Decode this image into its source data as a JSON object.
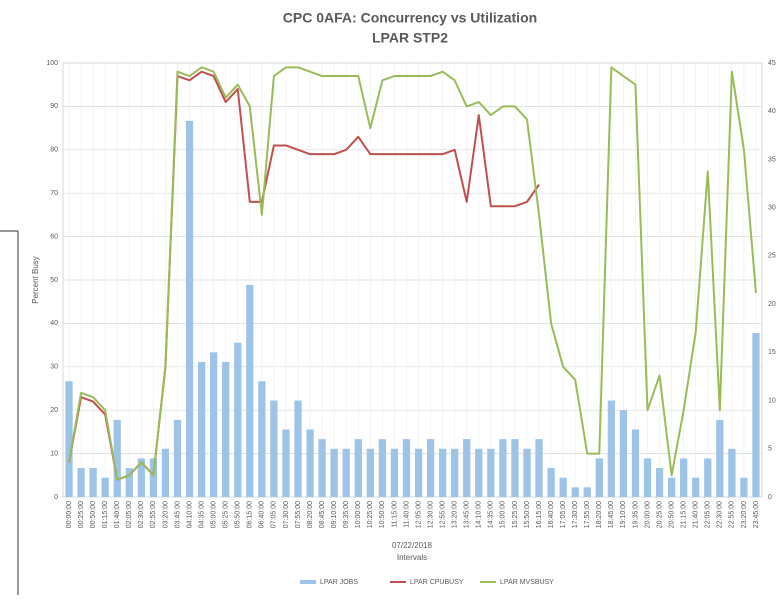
{
  "chart_data": {
    "type": "combo",
    "title": "CPC 0AFA: Concurrency vs Utilization",
    "subtitle": "LPAR STP2",
    "y_label": "Percent Busy",
    "x_label": "Intervals",
    "x_sublabel": "07/22/2018",
    "categories": [
      "00:00:00",
      "00:25:00",
      "00:50:00",
      "01:15:00",
      "01:40:00",
      "02:05:00",
      "02:30:00",
      "02:55:00",
      "03:20:00",
      "03:45:00",
      "04:10:00",
      "04:35:00",
      "05:00:00",
      "05:25:00",
      "05:50:00",
      "06:15:00",
      "06:40:00",
      "07:05:00",
      "07:30:00",
      "07:55:00",
      "08:20:00",
      "08:45:00",
      "09:10:00",
      "09:35:00",
      "10:00:00",
      "10:25:00",
      "10:50:00",
      "11:15:00",
      "11:40:00",
      "12:05:00",
      "12:30:00",
      "12:55:00",
      "13:20:00",
      "13:45:00",
      "14:10:00",
      "14:35:00",
      "15:00:00",
      "15:25:00",
      "15:50:00",
      "16:15:00",
      "16:40:00",
      "17:05:00",
      "17:30:00",
      "17:55:00",
      "18:20:00",
      "18:45:00",
      "19:10:00",
      "19:35:00",
      "20:00:00",
      "20:25:00",
      "20:50:00",
      "21:15:00",
      "21:40:00",
      "22:05:00",
      "22:30:00",
      "22:55:00",
      "23:20:00",
      "23:45:00"
    ],
    "series": [
      {
        "name": "LPAR JOBS",
        "kind": "bar",
        "axis": "y2",
        "color": "#9dc3e6",
        "values": [
          12,
          3,
          3,
          2,
          8,
          3,
          4,
          4,
          5,
          8,
          39,
          14,
          15,
          14,
          16,
          22,
          12,
          10,
          7,
          10,
          7,
          6,
          5,
          5,
          6,
          5,
          6,
          5,
          6,
          5,
          6,
          5,
          5,
          6,
          5,
          5,
          6,
          6,
          5,
          6,
          3,
          2,
          1,
          1,
          4,
          10,
          9,
          7,
          4,
          3,
          2,
          4,
          2,
          4,
          8,
          5,
          2,
          17
        ]
      },
      {
        "name": "LPAR CPUBUSY",
        "kind": "line",
        "color": "#c0504d",
        "values": [
          8,
          23,
          22,
          19,
          4,
          5,
          8,
          5,
          30,
          97,
          96,
          98,
          97,
          91,
          94,
          68,
          68,
          81,
          81,
          80,
          79,
          79,
          79,
          80,
          83,
          79,
          79,
          79,
          79,
          79,
          79,
          79,
          80,
          68,
          88,
          67,
          67,
          67,
          68,
          72,
          null,
          null,
          null,
          null,
          null,
          null,
          null,
          null,
          null,
          null,
          null,
          null,
          null,
          null,
          null,
          null,
          null,
          null
        ]
      },
      {
        "name": "LPAR MVSBUSY",
        "kind": "line",
        "color": "#9bbb59",
        "values": [
          8,
          24,
          23,
          20,
          4,
          5,
          8,
          5,
          30,
          98,
          97,
          99,
          98,
          92,
          95,
          90,
          65,
          97,
          99,
          99,
          98,
          97,
          97,
          97,
          97,
          85,
          96,
          97,
          97,
          97,
          97,
          98,
          96,
          90,
          91,
          88,
          90,
          90,
          87,
          65,
          40,
          30,
          27,
          10,
          10,
          99,
          97,
          95,
          20,
          28,
          5,
          20,
          38,
          75,
          20,
          98,
          80,
          47
        ]
      }
    ],
    "ylim": [
      0,
      100
    ],
    "yticks": [
      0,
      10,
      20,
      30,
      40,
      50,
      60,
      70,
      80,
      90,
      100
    ],
    "y2lim": [
      0,
      45
    ],
    "y2ticks": [
      0,
      5,
      10,
      15,
      20,
      25,
      30,
      35,
      40,
      45
    ],
    "grid": true
  }
}
